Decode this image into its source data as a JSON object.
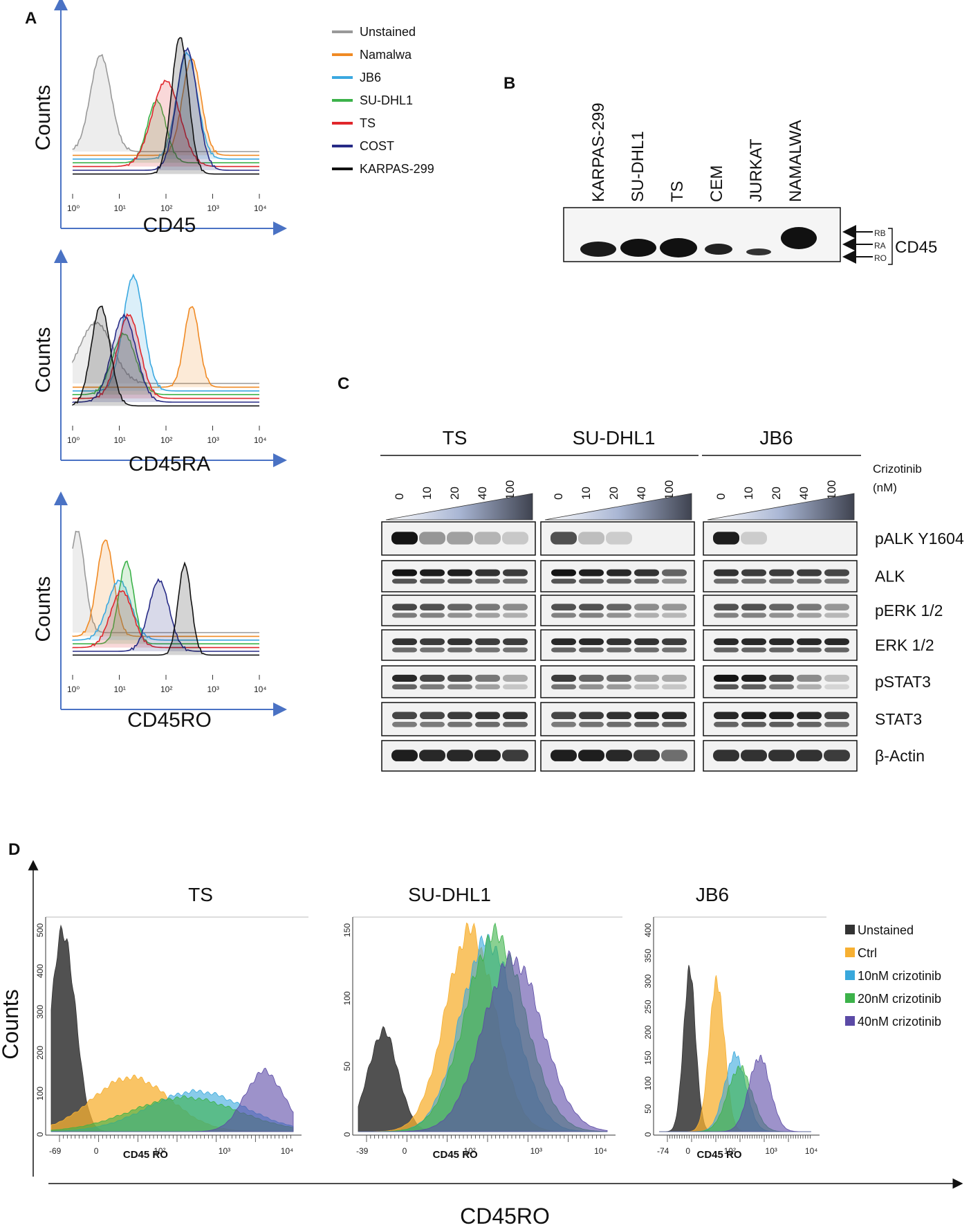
{
  "panels": {
    "A": {
      "letter": "A",
      "counts_label": "Counts",
      "plots": [
        {
          "xlabel": "CD45",
          "series": [
            {
              "name": "Unstained",
              "color": "#999999",
              "peak": 0.6,
              "width": 0.22,
              "height": 0.62,
              "offset": 0
            },
            {
              "name": "Namalwa",
              "color": "#f08a24",
              "peak": 2.55,
              "width": 0.2,
              "height": 0.62,
              "offset": 6
            },
            {
              "name": "JB6",
              "color": "#3aa8e0",
              "peak": 2.45,
              "width": 0.22,
              "height": 0.68,
              "offset": 12
            },
            {
              "name": "SU-DHL1",
              "color": "#3cb24a",
              "peak": 1.8,
              "width": 0.2,
              "height": 0.4,
              "offset": 18
            },
            {
              "name": "TS",
              "color": "#e0262b",
              "peak": 2.0,
              "width": 0.3,
              "height": 0.55,
              "offset": 24
            },
            {
              "name": "COST",
              "color": "#262a86",
              "peak": 2.45,
              "width": 0.22,
              "height": 0.78,
              "offset": 30
            },
            {
              "name": "KARPAS-299",
              "color": "#111111",
              "peak": 2.3,
              "width": 0.18,
              "height": 0.88,
              "offset": 36
            }
          ]
        },
        {
          "xlabel": "CD45RA",
          "series": [
            {
              "name": "Unstained",
              "color": "#999999",
              "peak": 0.5,
              "width": 0.35,
              "height": 0.45,
              "offset": 0
            },
            {
              "name": "Namalwa",
              "color": "#f08a24",
              "peak": 2.55,
              "width": 0.16,
              "height": 0.6,
              "offset": 6
            },
            {
              "name": "JB6",
              "color": "#3aa8e0",
              "peak": 1.3,
              "width": 0.22,
              "height": 0.85,
              "offset": 12
            },
            {
              "name": "SU-DHL1",
              "color": "#3cb24a",
              "peak": 1.1,
              "width": 0.25,
              "height": 0.45,
              "offset": 18
            },
            {
              "name": "TS",
              "color": "#e0262b",
              "peak": 1.2,
              "width": 0.24,
              "height": 0.62,
              "offset": 24
            },
            {
              "name": "COST",
              "color": "#262a86",
              "peak": 1.1,
              "width": 0.26,
              "height": 0.64,
              "offset": 30
            },
            {
              "name": "KARPAS-299",
              "color": "#111111",
              "peak": 0.6,
              "width": 0.2,
              "height": 0.74,
              "offset": 36
            }
          ]
        },
        {
          "xlabel": "CD45RO",
          "series": [
            {
              "name": "Unstained",
              "color": "#999999",
              "peak": 0.1,
              "width": 0.16,
              "height": 0.72,
              "offset": 0
            },
            {
              "name": "Namalwa",
              "color": "#f08a24",
              "peak": 0.7,
              "width": 0.18,
              "height": 0.68,
              "offset": 6
            },
            {
              "name": "JB6",
              "color": "#3aa8e0",
              "peak": 1.0,
              "width": 0.25,
              "height": 0.42,
              "offset": 12
            },
            {
              "name": "SU-DHL1",
              "color": "#3cb24a",
              "peak": 1.15,
              "width": 0.16,
              "height": 0.58,
              "offset": 18
            },
            {
              "name": "TS",
              "color": "#e0262b",
              "peak": 1.05,
              "width": 0.24,
              "height": 0.4,
              "offset": 24
            },
            {
              "name": "COST",
              "color": "#262a86",
              "peak": 1.85,
              "width": 0.22,
              "height": 0.5,
              "offset": 30
            },
            {
              "name": "KARPAS-299",
              "color": "#111111",
              "peak": 2.4,
              "width": 0.14,
              "height": 0.64,
              "offset": 36
            }
          ]
        }
      ],
      "tick_labels": [
        "10⁰",
        "10¹",
        "10²",
        "10³",
        "10⁴"
      ]
    },
    "B": {
      "letter": "B",
      "lanes": [
        "KARPAS-299",
        "SU-DHL1",
        "TS",
        "CEM",
        "JURKAT",
        "NAMALWA"
      ],
      "isoforms": [
        "RB",
        "RA",
        "RO"
      ],
      "protein": "CD45"
    },
    "C": {
      "letter": "C",
      "groups": [
        "TS",
        "SU-DHL1",
        "JB6"
      ],
      "concentrations": [
        "0",
        "10",
        "20",
        "40",
        "100"
      ],
      "drug_label": "Crizotinib",
      "unit_label": "(nM)",
      "blots": [
        {
          "label": "pALK Y1604",
          "intensities": [
            [
              1.0,
              0.35,
              0.3,
              0.2,
              0.1
            ],
            [
              0.7,
              0.15,
              0.08,
              0.0,
              0.0
            ],
            [
              0.95,
              0.08,
              0.0,
              0.0,
              0.0
            ]
          ]
        },
        {
          "label": "ALK",
          "intensities": [
            [
              1.0,
              0.95,
              0.95,
              0.85,
              0.8
            ],
            [
              1.0,
              0.95,
              0.9,
              0.85,
              0.6
            ],
            [
              0.85,
              0.8,
              0.8,
              0.8,
              0.75
            ]
          ]
        },
        {
          "label": "pERK 1/2",
          "intensities": [
            [
              0.75,
              0.7,
              0.6,
              0.5,
              0.4
            ],
            [
              0.7,
              0.7,
              0.6,
              0.4,
              0.35
            ],
            [
              0.7,
              0.7,
              0.6,
              0.5,
              0.35
            ]
          ]
        },
        {
          "label": "ERK 1/2",
          "intensities": [
            [
              0.85,
              0.8,
              0.85,
              0.8,
              0.8
            ],
            [
              0.9,
              0.9,
              0.85,
              0.85,
              0.8
            ],
            [
              0.9,
              0.9,
              0.9,
              0.9,
              0.9
            ]
          ]
        },
        {
          "label": "pSTAT3",
          "intensities": [
            [
              0.9,
              0.75,
              0.7,
              0.5,
              0.25
            ],
            [
              0.8,
              0.6,
              0.55,
              0.3,
              0.25
            ],
            [
              1.0,
              0.95,
              0.75,
              0.4,
              0.15
            ]
          ]
        },
        {
          "label": "STAT3",
          "intensities": [
            [
              0.75,
              0.75,
              0.8,
              0.85,
              0.85
            ],
            [
              0.75,
              0.8,
              0.85,
              0.9,
              0.9
            ],
            [
              0.9,
              0.95,
              0.95,
              0.9,
              0.75
            ]
          ]
        },
        {
          "label": "β-Actin",
          "intensities": [
            [
              0.95,
              0.9,
              0.9,
              0.9,
              0.8
            ],
            [
              0.95,
              0.95,
              0.9,
              0.8,
              0.55
            ],
            [
              0.85,
              0.85,
              0.85,
              0.85,
              0.8
            ]
          ]
        }
      ]
    },
    "D": {
      "letter": "D",
      "counts_label": "Counts",
      "xlabel": "CD45RO",
      "small_xlabel": "CD45 RO",
      "legend": [
        {
          "name": "Unstained",
          "color": "#333333"
        },
        {
          "name": "Ctrl",
          "color": "#f7b032"
        },
        {
          "name": "10nM crizotinib",
          "color": "#39a8dc"
        },
        {
          "name": "20nM crizotinib",
          "color": "#3cb24a"
        },
        {
          "name": "40nM crizotinib",
          "color": "#5b4aa6"
        }
      ],
      "plots": [
        {
          "title": "TS",
          "y_ticks": [
            "500",
            "400",
            "300",
            "200",
            "100",
            "0"
          ],
          "x_ticks": [
            "-69",
            "0",
            "10²",
            "10³",
            "10⁴"
          ],
          "series": [
            {
              "name": "Unstained",
              "peak": 0.05,
              "width": 0.05,
              "height": 1.0
            },
            {
              "name": "Ctrl",
              "peak": 0.33,
              "width": 0.16,
              "height": 0.27
            },
            {
              "name": "10nM crizotinib",
              "peak": 0.6,
              "width": 0.2,
              "height": 0.2
            },
            {
              "name": "20nM crizotinib",
              "peak": 0.55,
              "width": 0.22,
              "height": 0.17
            },
            {
              "name": "40nM crizotinib",
              "peak": 0.88,
              "width": 0.08,
              "height": 0.3
            }
          ]
        },
        {
          "title": "SU-DHL1",
          "y_ticks": [
            "150",
            "100",
            "50",
            "0"
          ],
          "x_ticks": [
            "-39",
            "0",
            "10²",
            "10³",
            "10⁴"
          ],
          "series": [
            {
              "name": "Unstained",
              "peak": 0.1,
              "width": 0.06,
              "height": 0.5
            },
            {
              "name": "Ctrl",
              "peak": 0.45,
              "width": 0.1,
              "height": 1.0
            },
            {
              "name": "10nM crizotinib",
              "peak": 0.52,
              "width": 0.11,
              "height": 0.95
            },
            {
              "name": "20nM crizotinib",
              "peak": 0.55,
              "width": 0.12,
              "height": 0.98
            },
            {
              "name": "40nM crizotinib",
              "peak": 0.62,
              "width": 0.12,
              "height": 0.86
            }
          ]
        },
        {
          "title": "JB6",
          "y_ticks": [
            "400",
            "350",
            "300",
            "250",
            "200",
            "150",
            "100",
            "50",
            "0"
          ],
          "x_ticks": [
            "-74",
            "0",
            "10²",
            "10³",
            "10⁴"
          ],
          "series": [
            {
              "name": "Unstained",
              "peak": 0.2,
              "width": 0.04,
              "height": 0.8
            },
            {
              "name": "Ctrl",
              "peak": 0.38,
              "width": 0.05,
              "height": 0.75
            },
            {
              "name": "10nM crizotinib",
              "peak": 0.5,
              "width": 0.07,
              "height": 0.38
            },
            {
              "name": "20nM crizotinib",
              "peak": 0.53,
              "width": 0.08,
              "height": 0.32
            },
            {
              "name": "40nM crizotinib",
              "peak": 0.66,
              "width": 0.07,
              "height": 0.37
            }
          ]
        }
      ]
    }
  }
}
